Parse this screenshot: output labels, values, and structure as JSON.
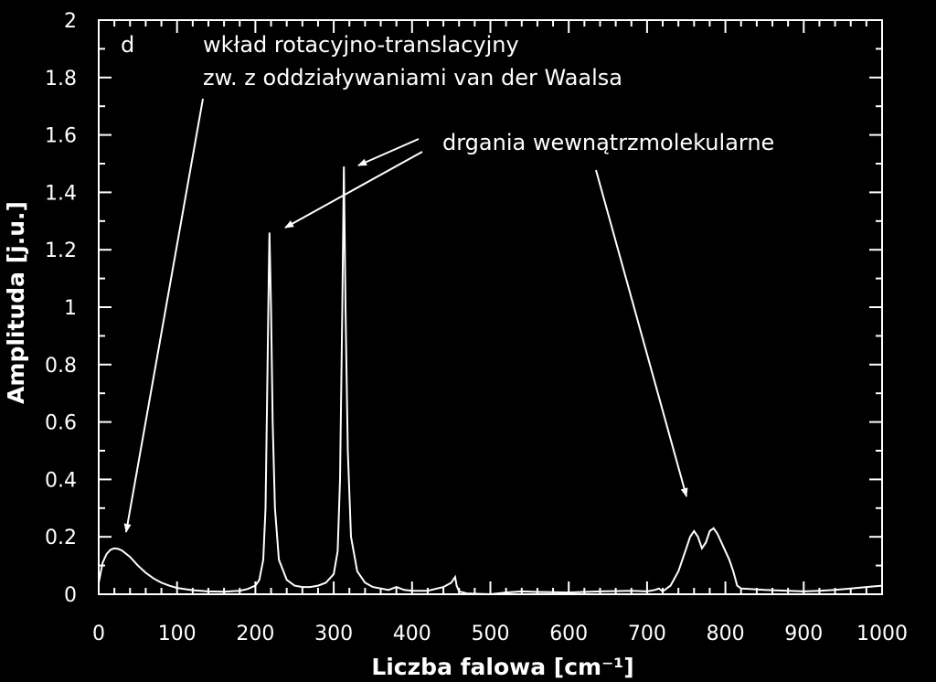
{
  "chart_data": {
    "type": "line",
    "panel_label": "d",
    "xlabel": "Liczba falowa [cm⁻¹]",
    "ylabel": "Amplituda [j.u.]",
    "xlim": [
      0,
      1000
    ],
    "ylim": [
      0,
      2
    ],
    "x_ticks": [
      0,
      100,
      200,
      300,
      400,
      500,
      600,
      700,
      800,
      900,
      1000
    ],
    "y_ticks": [
      0,
      0.2,
      0.4,
      0.6,
      0.8,
      1,
      1.2,
      1.4,
      1.6,
      1.8,
      2
    ],
    "x_tick_labels": [
      "0",
      "100",
      "200",
      "300",
      "400",
      "500",
      "600",
      "700",
      "800",
      "900",
      "1000"
    ],
    "y_tick_labels": [
      "0",
      "0.2",
      "0.4",
      "0.6",
      "0.8",
      "1",
      "1.2",
      "1.4",
      "1.6",
      "1.8",
      "2"
    ],
    "grid": false,
    "colors": {
      "background": "#000000",
      "foreground": "#ffffff"
    },
    "series": [
      {
        "x": [
          0,
          5,
          10,
          15,
          20,
          25,
          30,
          40,
          50,
          60,
          70,
          80,
          90,
          100,
          120,
          140,
          160,
          180,
          190,
          200,
          205,
          210,
          213,
          215,
          217,
          218,
          220,
          222,
          225,
          230,
          240,
          250,
          260,
          270,
          280,
          290,
          300,
          305,
          308,
          311,
          313,
          315,
          318,
          322,
          330,
          340,
          350,
          360,
          370,
          380,
          390,
          400,
          420,
          440,
          450,
          455,
          457,
          460,
          470,
          500,
          520,
          540,
          560,
          600,
          640,
          680,
          700,
          710,
          715,
          720,
          730,
          740,
          745,
          750,
          755,
          760,
          765,
          770,
          775,
          780,
          785,
          790,
          795,
          800,
          805,
          810,
          815,
          820,
          850,
          880,
          900,
          920,
          940,
          960,
          980,
          1000
        ],
        "y": [
          0.04,
          0.11,
          0.14,
          0.155,
          0.16,
          0.158,
          0.152,
          0.13,
          0.1,
          0.075,
          0.055,
          0.04,
          0.03,
          0.022,
          0.014,
          0.01,
          0.009,
          0.012,
          0.018,
          0.03,
          0.05,
          0.12,
          0.3,
          0.7,
          1.1,
          1.26,
          1.0,
          0.6,
          0.3,
          0.12,
          0.05,
          0.03,
          0.025,
          0.025,
          0.03,
          0.04,
          0.07,
          0.15,
          0.4,
          1.0,
          1.49,
          1.0,
          0.5,
          0.2,
          0.08,
          0.04,
          0.025,
          0.02,
          0.015,
          0.025,
          0.015,
          0.012,
          0.012,
          0.025,
          0.04,
          0.06,
          0.03,
          0.01,
          0.003,
          0.0,
          0.006,
          0.01,
          0.008,
          0.006,
          0.01,
          0.012,
          0.01,
          0.015,
          0.02,
          0.01,
          0.03,
          0.08,
          0.12,
          0.16,
          0.2,
          0.22,
          0.2,
          0.16,
          0.18,
          0.22,
          0.23,
          0.21,
          0.18,
          0.15,
          0.12,
          0.08,
          0.03,
          0.02,
          0.015,
          0.012,
          0.01,
          0.012,
          0.015,
          0.02,
          0.025,
          0.03
        ]
      }
    ],
    "annotations": [
      {
        "lines": [
          "wkład rotacyjno-translacyjny",
          "zw. z oddziaływaniami van der Waalsa"
        ],
        "arrows_to": [
          [
            35,
            0.2
          ]
        ]
      },
      {
        "lines": [
          "drgania wewnątrzmolekularne"
        ],
        "arrows_to": [
          [
            235,
            1.27
          ],
          [
            330,
            1.49
          ],
          [
            755,
            0.34
          ]
        ]
      }
    ]
  }
}
